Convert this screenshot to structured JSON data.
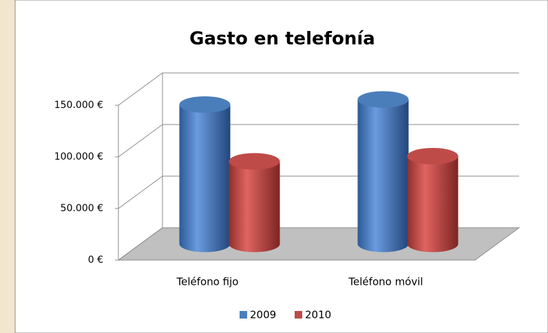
{
  "chart_data": {
    "type": "bar3d",
    "title": "Gasto en telefonía",
    "categories": [
      "Teléfono fijo",
      "Teléfono móvil"
    ],
    "series": [
      {
        "name": "2009",
        "color": "#4a7ebb",
        "values": [
          135000,
          140000
        ]
      },
      {
        "name": "2010",
        "color": "#be4b48",
        "values": [
          80000,
          85000
        ]
      }
    ],
    "ylim": [
      0,
      150000
    ],
    "yticks": [
      {
        "value": 0,
        "label": "0 €"
      },
      {
        "value": 50000,
        "label": "50.000 €"
      },
      {
        "value": 100000,
        "label": "100.000 €"
      },
      {
        "value": 150000,
        "label": "150.000 €"
      }
    ],
    "grid": true,
    "legend": "bottom"
  }
}
